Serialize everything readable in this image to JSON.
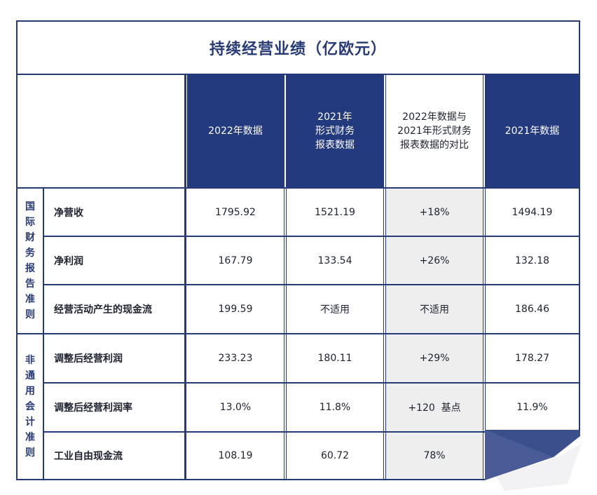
{
  "title": "持续经营业绩（亿欧元）",
  "columns": [
    {
      "label": "2022年数据",
      "style": "dark"
    },
    {
      "label": "2021年\n形式财务\n报表数据",
      "style": "dark"
    },
    {
      "label": "2022年数据与\n2021年形式财务\n报表数据的对比",
      "style": "light"
    },
    {
      "label": "2021年数据",
      "style": "dark"
    }
  ],
  "groups": [
    {
      "label": "国\n际\n财\n务\n报\n告\n准\n则"
    },
    {
      "label": "非\n通\n用\n会\n计\n准\n则"
    }
  ],
  "rows": [
    {
      "label": "净营收",
      "values": [
        "1795.92",
        "1521.19",
        "+18%",
        "1494.19"
      ]
    },
    {
      "label": "净利润",
      "values": [
        "167.79",
        "133.54",
        "+26%",
        "132.18"
      ]
    },
    {
      "label": "经营活动产生的现金流",
      "values": [
        "199.59",
        "不适用",
        "不适用",
        "186.46"
      ]
    },
    {
      "label": "调整后经营利润",
      "values": [
        "233.23",
        "180.11",
        "+29%",
        "178.27"
      ]
    },
    {
      "label": "调整后经营利润率",
      "values": [
        "13.0%",
        "11.8%",
        "+120  基点",
        "11.9%"
      ]
    },
    {
      "label": "工业自由现金流",
      "values": [
        "108.19",
        "60.72",
        "78%",
        ""
      ]
    }
  ],
  "colors": {
    "navy": "#243a7e",
    "grey": "#eeeeef",
    "title": "#263a78"
  }
}
